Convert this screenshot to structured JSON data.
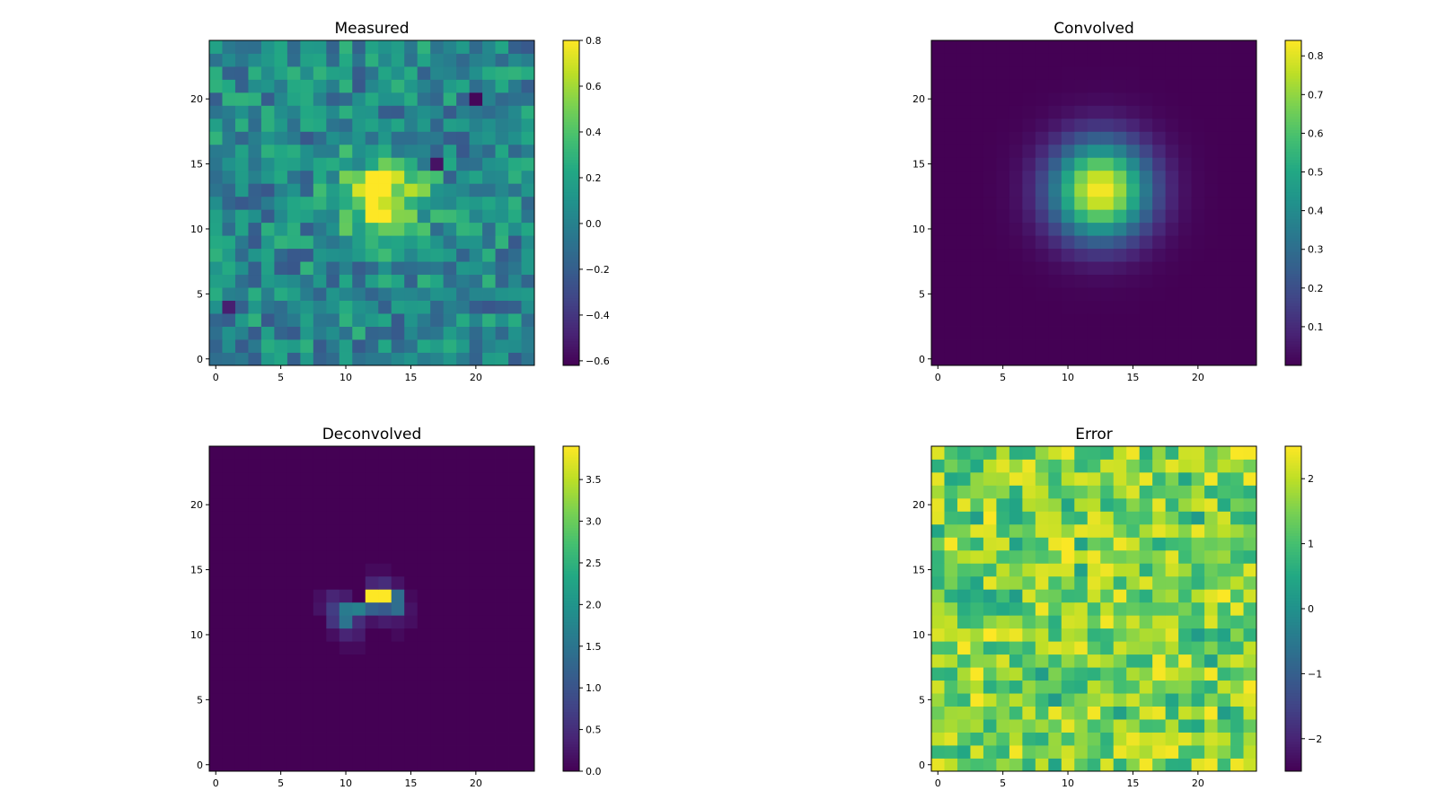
{
  "chart_data": [
    {
      "type": "heatmap",
      "title": "Measured",
      "grid_size": 25,
      "origin": "lower",
      "colormap": "viridis",
      "xlim": [
        -0.5,
        24.5
      ],
      "ylim": [
        -0.5,
        24.5
      ],
      "x_ticks": [
        0,
        5,
        10,
        15,
        20
      ],
      "y_ticks": [
        0,
        5,
        10,
        15,
        20
      ],
      "colorbar": {
        "range": [
          -0.62,
          0.8
        ],
        "ticks": [
          -0.6,
          -0.4,
          -0.2,
          0.0,
          0.2,
          0.4,
          0.6,
          0.8
        ],
        "tick_labels": [
          "−0.6",
          "−0.4",
          "−0.2",
          "0.0",
          "0.2",
          "0.4",
          "0.6",
          "0.8"
        ]
      },
      "data_model": {
        "kind": "gaussian_plus_noise",
        "center": [
          13,
          12.5
        ],
        "sigma": 2.2,
        "peak": 0.78,
        "noise_amplitude": 0.3,
        "seed": 11,
        "overrides": [
          [
            20,
            20,
            -0.6
          ],
          [
            17,
            15,
            -0.55
          ],
          [
            1,
            4,
            -0.5
          ]
        ]
      }
    },
    {
      "type": "heatmap",
      "title": "Convolved",
      "grid_size": 25,
      "origin": "lower",
      "colormap": "viridis",
      "xlim": [
        -0.5,
        24.5
      ],
      "ylim": [
        -0.5,
        24.5
      ],
      "x_ticks": [
        0,
        5,
        10,
        15,
        20
      ],
      "y_ticks": [
        0,
        5,
        10,
        15,
        20
      ],
      "colorbar": {
        "range": [
          0.0,
          0.84
        ],
        "ticks": [
          0.1,
          0.2,
          0.3,
          0.4,
          0.5,
          0.6,
          0.7,
          0.8
        ],
        "tick_labels": [
          "0.1",
          "0.2",
          "0.3",
          "0.4",
          "0.5",
          "0.6",
          "0.7",
          "0.8"
        ]
      },
      "data_model": {
        "kind": "gaussian",
        "center": [
          12.5,
          13
        ],
        "sigma": 2.6,
        "peak": 0.84
      }
    },
    {
      "type": "heatmap",
      "title": "Deconvolved",
      "grid_size": 25,
      "origin": "lower",
      "colormap": "viridis",
      "xlim": [
        -0.5,
        24.5
      ],
      "ylim": [
        -0.5,
        24.5
      ],
      "x_ticks": [
        0,
        5,
        10,
        15,
        20
      ],
      "y_ticks": [
        0,
        5,
        10,
        15,
        20
      ],
      "colorbar": {
        "range": [
          0.0,
          3.9
        ],
        "ticks": [
          0.0,
          0.5,
          1.0,
          1.5,
          2.0,
          2.5,
          3.0,
          3.5
        ],
        "tick_labels": [
          "0.0",
          "0.5",
          "1.0",
          "1.5",
          "2.0",
          "2.5",
          "3.0",
          "3.5"
        ]
      },
      "cells": [
        [
          12,
          13,
          3.9
        ],
        [
          13,
          13,
          3.9
        ],
        [
          14,
          13,
          1.4
        ],
        [
          12,
          12,
          1.2
        ],
        [
          13,
          12,
          1.1
        ],
        [
          14,
          12,
          1.4
        ],
        [
          10,
          12,
          1.6
        ],
        [
          11,
          12,
          1.7
        ],
        [
          10,
          11,
          1.5
        ],
        [
          9,
          12,
          0.7
        ],
        [
          9,
          11,
          0.6
        ],
        [
          11,
          11,
          0.5
        ],
        [
          10,
          10,
          0.4
        ],
        [
          11,
          10,
          0.3
        ],
        [
          12,
          14,
          0.4
        ],
        [
          13,
          14,
          0.5
        ],
        [
          9,
          13,
          0.4
        ],
        [
          10,
          13,
          0.3
        ],
        [
          14,
          14,
          0.2
        ],
        [
          15,
          12,
          0.2
        ],
        [
          15,
          11,
          0.15
        ],
        [
          12,
          15,
          0.1
        ],
        [
          13,
          15,
          0.1
        ],
        [
          8,
          12,
          0.2
        ],
        [
          8,
          13,
          0.15
        ],
        [
          9,
          10,
          0.15
        ],
        [
          12,
          11,
          0.2
        ],
        [
          13,
          11,
          0.3
        ],
        [
          14,
          11,
          0.25
        ],
        [
          10,
          9,
          0.1
        ],
        [
          11,
          9,
          0.1
        ],
        [
          14,
          10,
          0.1
        ],
        [
          15,
          13,
          0.1
        ]
      ]
    },
    {
      "type": "heatmap",
      "title": "Error",
      "grid_size": 25,
      "origin": "lower",
      "colormap": "viridis",
      "xlim": [
        -0.5,
        24.5
      ],
      "ylim": [
        -0.5,
        24.5
      ],
      "x_ticks": [
        0,
        5,
        10,
        15,
        20
      ],
      "y_ticks": [
        0,
        5,
        10,
        15,
        20
      ],
      "colorbar": {
        "range": [
          -2.5,
          2.5
        ],
        "ticks": [
          -2,
          -1,
          0,
          1,
          2
        ],
        "tick_labels": [
          "−2",
          "−1",
          "0",
          "1",
          "2"
        ]
      },
      "data_model": {
        "kind": "uniform_noise",
        "low": 0.6,
        "high": 2.5,
        "seed": 29
      }
    }
  ]
}
